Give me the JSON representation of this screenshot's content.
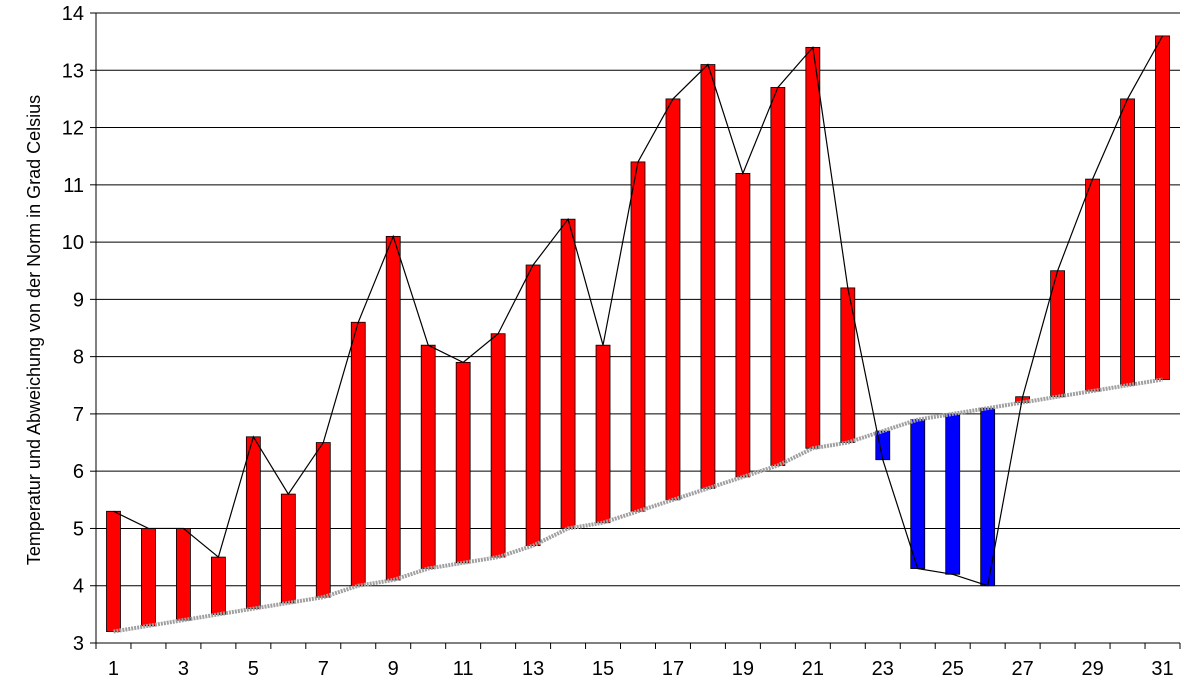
{
  "chart_data": {
    "type": "bar",
    "ylabel": "Temperatur und Abweichung von der Norm in Grad Celsius",
    "xlabel": "",
    "ylim": [
      3,
      14
    ],
    "yticks": [
      3,
      4,
      5,
      6,
      7,
      8,
      9,
      10,
      11,
      12,
      13,
      14
    ],
    "x": [
      1,
      2,
      3,
      4,
      5,
      6,
      7,
      8,
      9,
      10,
      11,
      12,
      13,
      14,
      15,
      16,
      17,
      18,
      19,
      20,
      21,
      22,
      23,
      24,
      25,
      26,
      27,
      28,
      29,
      30,
      31
    ],
    "xtick_labels": [
      "1",
      "3",
      "5",
      "7",
      "9",
      "11",
      "13",
      "15",
      "17",
      "19",
      "21",
      "23",
      "25",
      "27",
      "29",
      "31"
    ],
    "grid": "horizontal",
    "series": [
      {
        "role": "actual temperature",
        "values": [
          5.3,
          5.0,
          5.0,
          4.5,
          6.6,
          5.6,
          6.5,
          8.6,
          10.1,
          8.2,
          7.9,
          8.4,
          9.6,
          10.4,
          8.2,
          11.4,
          12.5,
          13.1,
          11.2,
          12.7,
          13.4,
          9.2,
          6.2,
          4.3,
          4.2,
          4.0,
          7.3,
          9.5,
          11.1,
          12.5,
          13.6
        ],
        "color": "#000000"
      },
      {
        "role": "norm",
        "values": [
          3.2,
          3.3,
          3.4,
          3.5,
          3.6,
          3.7,
          3.8,
          4.0,
          4.1,
          4.3,
          4.4,
          4.5,
          4.7,
          5.0,
          5.1,
          5.3,
          5.5,
          5.7,
          5.9,
          6.1,
          6.4,
          6.5,
          6.7,
          6.9,
          7.0,
          7.1,
          7.2,
          7.3,
          7.4,
          7.5,
          7.6
        ],
        "color": "#a0a0a0"
      }
    ],
    "colors": {
      "above_norm": "#ff0000",
      "below_norm": "#0000ff",
      "grid": "#000000"
    }
  }
}
